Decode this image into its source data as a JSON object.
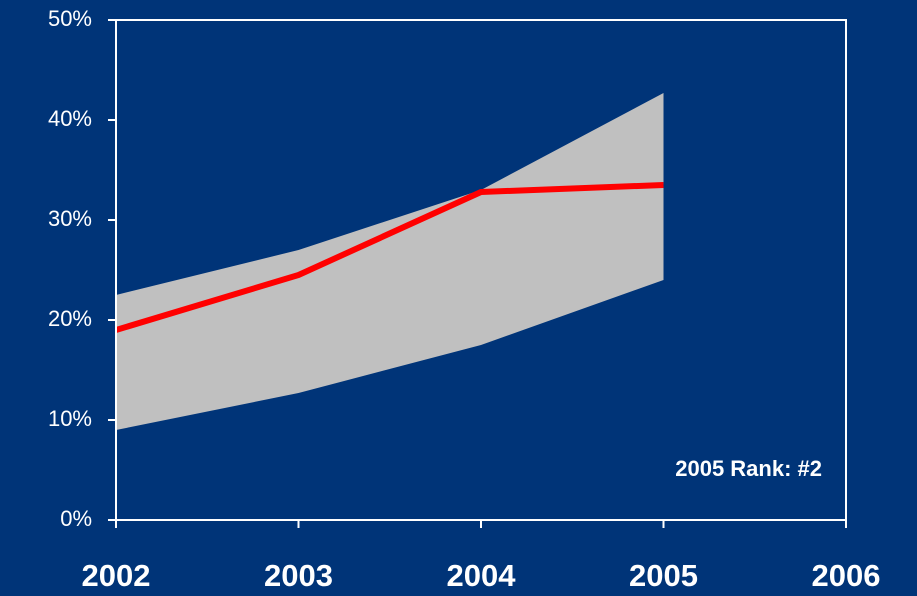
{
  "chart_data": {
    "type": "line",
    "x": [
      2002,
      2003,
      2004,
      2005
    ],
    "band": {
      "upper": [
        22.5,
        27,
        33,
        42.7
      ],
      "lower": [
        9,
        12.7,
        17.5,
        24
      ],
      "color": "#c0c0c0"
    },
    "series": [
      {
        "color": "#ff0000",
        "values": [
          19,
          24.5,
          32.8,
          33.5
        ]
      }
    ],
    "xlim": [
      2002,
      2006
    ],
    "xticks": [
      2002,
      2003,
      2004,
      2005,
      2006
    ],
    "ylim": [
      0,
      50
    ],
    "yticks": [
      {
        "value": 0,
        "label": "0%"
      },
      {
        "value": 10,
        "label": "10%"
      },
      {
        "value": 20,
        "label": "20%"
      },
      {
        "value": 30,
        "label": "30%"
      },
      {
        "value": 40,
        "label": "40%"
      },
      {
        "value": 50,
        "label": "50%"
      }
    ],
    "annotation": "2005 Rank: #2",
    "background": "#003478",
    "axis_color": "#ffffff"
  }
}
